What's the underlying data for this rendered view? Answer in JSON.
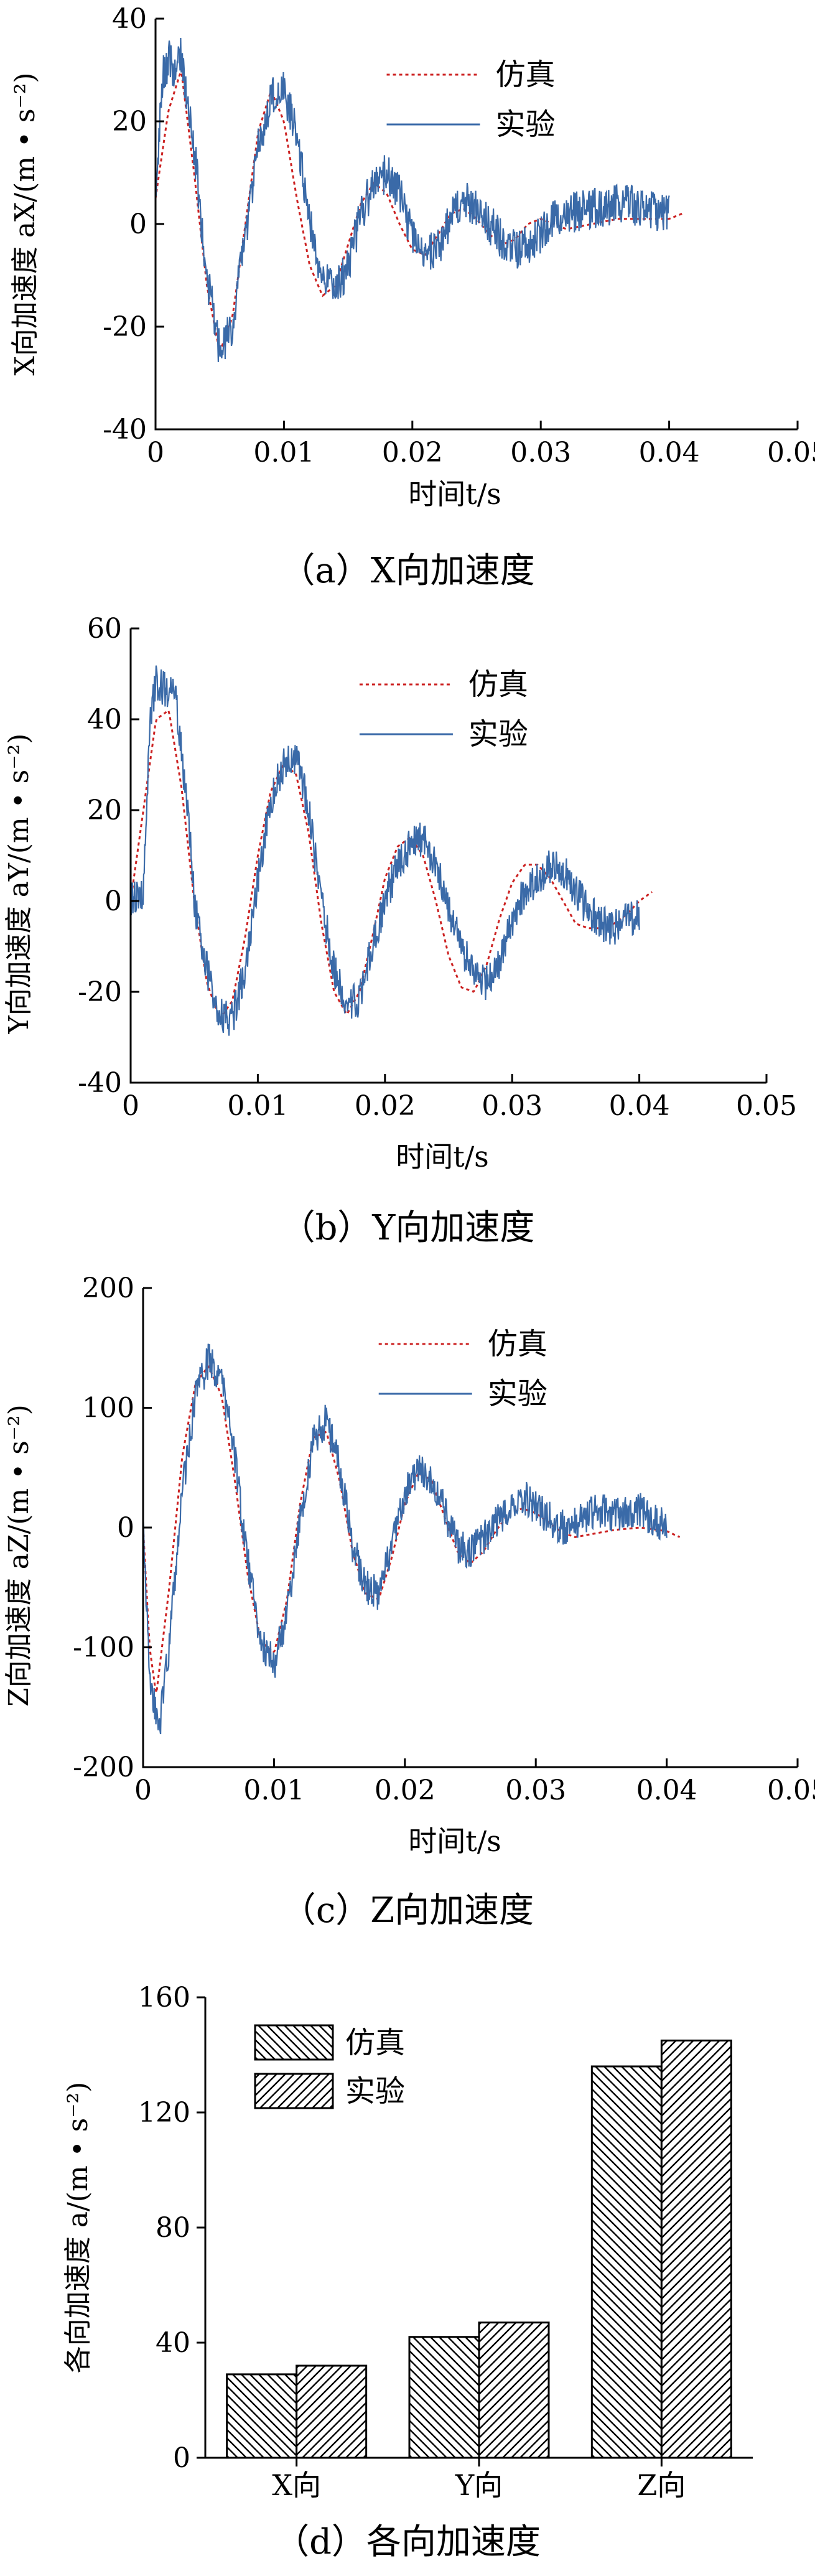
{
  "chart_data": [
    {
      "type": "line",
      "caption": "（a）X向加速度",
      "xlabel": "时间t/s",
      "ylabel": "X向加速度 aX/(m • s⁻²)",
      "xlim": [
        0,
        0.05
      ],
      "ylim": [
        -40,
        40
      ],
      "xticks": [
        "0",
        "0.01",
        "0.02",
        "0.03",
        "0.04",
        "0.05"
      ],
      "yticks": [
        "-40",
        "-20",
        "0",
        "20",
        "40"
      ],
      "legend": {
        "position": "top-right",
        "entries": [
          "仿真",
          "实验"
        ]
      },
      "series": [
        {
          "name": "仿真",
          "style": "dotted",
          "color": "#cc2222",
          "x": [
            0,
            0.001,
            0.002,
            0.003,
            0.004,
            0.005,
            0.006,
            0.007,
            0.008,
            0.009,
            0.01,
            0.011,
            0.012,
            0.013,
            0.014,
            0.015,
            0.016,
            0.017,
            0.018,
            0.019,
            0.02,
            0.021,
            0.022,
            0.023,
            0.024,
            0.025,
            0.026,
            0.027,
            0.028,
            0.029,
            0.03,
            0.031,
            0.032,
            0.034,
            0.036,
            0.038,
            0.04,
            0.041
          ],
          "y": [
            5,
            22,
            30,
            10,
            -12,
            -25,
            -18,
            0,
            18,
            26,
            20,
            5,
            -8,
            -14,
            -12,
            -4,
            4,
            8,
            6,
            0,
            -5,
            -6,
            -2,
            2,
            3,
            1,
            -2,
            -4,
            -3,
            0,
            1,
            0,
            -1,
            0,
            1,
            1,
            1,
            2
          ]
        },
        {
          "name": "实验",
          "style": "solid",
          "color": "#3a6aa8",
          "noise": 4,
          "x": [
            0,
            0.0005,
            0.001,
            0.0015,
            0.002,
            0.003,
            0.004,
            0.005,
            0.006,
            0.007,
            0.008,
            0.009,
            0.01,
            0.011,
            0.012,
            0.013,
            0.014,
            0.015,
            0.016,
            0.017,
            0.018,
            0.019,
            0.02,
            0.021,
            0.022,
            0.023,
            0.024,
            0.025,
            0.026,
            0.027,
            0.028,
            0.029,
            0.03,
            0.031,
            0.032,
            0.034,
            0.036,
            0.038,
            0.04
          ],
          "y": [
            5,
            28,
            32,
            30,
            33,
            15,
            -10,
            -25,
            -20,
            -2,
            15,
            25,
            26,
            18,
            0,
            -10,
            -13,
            -8,
            2,
            8,
            10,
            6,
            -2,
            -6,
            -5,
            1,
            5,
            3,
            0,
            -3,
            -5,
            -4,
            -2,
            1,
            2,
            3,
            4,
            3,
            2
          ]
        }
      ]
    },
    {
      "type": "line",
      "caption": "（b）Y向加速度",
      "xlabel": "时间t/s",
      "ylabel": "Y向加速度 aY/(m • s⁻²)",
      "xlim": [
        0,
        0.05
      ],
      "ylim": [
        -40,
        60
      ],
      "xticks": [
        "0",
        "0.01",
        "0.02",
        "0.03",
        "0.04",
        "0.05"
      ],
      "yticks": [
        "-40",
        "-20",
        "0",
        "20",
        "40",
        "60"
      ],
      "legend": {
        "position": "top-right",
        "entries": [
          "仿真",
          "实验"
        ]
      },
      "series": [
        {
          "name": "仿真",
          "style": "dotted",
          "color": "#cc2222",
          "x": [
            0,
            0.001,
            0.002,
            0.003,
            0.004,
            0.005,
            0.006,
            0.007,
            0.008,
            0.009,
            0.01,
            0.011,
            0.012,
            0.013,
            0.014,
            0.015,
            0.016,
            0.017,
            0.018,
            0.019,
            0.02,
            0.021,
            0.022,
            0.023,
            0.024,
            0.025,
            0.026,
            0.027,
            0.028,
            0.029,
            0.03,
            0.031,
            0.032,
            0.033,
            0.034,
            0.035,
            0.036,
            0.037,
            0.038,
            0.039,
            0.04,
            0.041
          ],
          "y": [
            0,
            20,
            40,
            42,
            25,
            0,
            -18,
            -26,
            -22,
            -8,
            10,
            24,
            30,
            28,
            15,
            -5,
            -20,
            -25,
            -20,
            -8,
            5,
            12,
            14,
            10,
            0,
            -12,
            -19,
            -20,
            -14,
            -4,
            4,
            8,
            8,
            5,
            0,
            -5,
            -6,
            -6,
            -5,
            -3,
            0,
            2
          ]
        },
        {
          "name": "实验",
          "style": "solid",
          "color": "#3a6aa8",
          "noise": 4,
          "x": [
            0,
            0.001,
            0.0015,
            0.002,
            0.0035,
            0.0045,
            0.005,
            0.006,
            0.007,
            0.008,
            0.009,
            0.01,
            0.011,
            0.012,
            0.013,
            0.014,
            0.015,
            0.016,
            0.017,
            0.018,
            0.019,
            0.02,
            0.021,
            0.022,
            0.023,
            0.024,
            0.025,
            0.026,
            0.027,
            0.028,
            0.029,
            0.03,
            0.031,
            0.032,
            0.033,
            0.034,
            0.035,
            0.036,
            0.037,
            0.038,
            0.039,
            0.04
          ],
          "y": [
            0,
            2,
            40,
            48,
            45,
            20,
            0,
            -15,
            -25,
            -26,
            -15,
            5,
            22,
            30,
            32,
            20,
            0,
            -15,
            -22,
            -22,
            -10,
            0,
            8,
            12,
            14,
            8,
            -2,
            -10,
            -16,
            -18,
            -14,
            -4,
            2,
            5,
            8,
            7,
            2,
            -2,
            -5,
            -6,
            -4,
            -3
          ]
        }
      ]
    },
    {
      "type": "line",
      "caption": "（c）Z向加速度",
      "xlabel": "时间t/s",
      "ylabel": "Z向加速度 aZ/(m • s⁻²)",
      "xlim": [
        0,
        0.05
      ],
      "ylim": [
        -200,
        200
      ],
      "xticks": [
        "0",
        "0.01",
        "0.02",
        "0.03",
        "0.04",
        "0.05"
      ],
      "yticks": [
        "-200",
        "-100",
        "0",
        "100",
        "200"
      ],
      "legend": {
        "position": "top-right",
        "entries": [
          "仿真",
          "实验"
        ]
      },
      "series": [
        {
          "name": "仿真",
          "style": "dotted",
          "color": "#cc2222",
          "x": [
            0,
            0.0005,
            0.001,
            0.002,
            0.003,
            0.004,
            0.005,
            0.006,
            0.007,
            0.008,
            0.009,
            0.01,
            0.011,
            0.012,
            0.013,
            0.014,
            0.015,
            0.016,
            0.017,
            0.018,
            0.019,
            0.02,
            0.021,
            0.022,
            0.023,
            0.024,
            0.025,
            0.026,
            0.027,
            0.028,
            0.029,
            0.03,
            0.031,
            0.032,
            0.033,
            0.034,
            0.036,
            0.038,
            0.04,
            0.041
          ],
          "y": [
            0,
            -100,
            -140,
            -50,
            60,
            120,
            135,
            110,
            40,
            -40,
            -95,
            -105,
            -60,
            20,
            75,
            80,
            40,
            -20,
            -55,
            -60,
            -25,
            20,
            45,
            40,
            10,
            -20,
            -30,
            -20,
            -2,
            12,
            16,
            12,
            4,
            -4,
            -8,
            -6,
            -2,
            0,
            -3,
            -8
          ]
        },
        {
          "name": "实验",
          "style": "solid",
          "color": "#3a6aa8",
          "noise": 15,
          "x": [
            0,
            0.0005,
            0.0012,
            0.002,
            0.003,
            0.004,
            0.005,
            0.006,
            0.007,
            0.008,
            0.009,
            0.01,
            0.011,
            0.012,
            0.013,
            0.014,
            0.015,
            0.016,
            0.017,
            0.018,
            0.019,
            0.02,
            0.021,
            0.022,
            0.023,
            0.024,
            0.025,
            0.026,
            0.027,
            0.028,
            0.029,
            0.03,
            0.031,
            0.032,
            0.033,
            0.034,
            0.035,
            0.036,
            0.037,
            0.038,
            0.039,
            0.04
          ],
          "y": [
            0,
            -120,
            -170,
            -100,
            30,
            110,
            140,
            125,
            60,
            -30,
            -95,
            -115,
            -70,
            10,
            70,
            90,
            50,
            -15,
            -50,
            -55,
            -15,
            30,
            50,
            40,
            15,
            -15,
            -20,
            -10,
            5,
            18,
            25,
            18,
            8,
            0,
            2,
            12,
            15,
            10,
            12,
            15,
            5,
            0
          ]
        }
      ]
    },
    {
      "type": "bar",
      "caption": "（d）各向加速度",
      "ylabel": "各向加速度 a/(m • s⁻²)",
      "ylim": [
        0,
        160
      ],
      "yticks": [
        "0",
        "40",
        "80",
        "120",
        "160"
      ],
      "categories": [
        "X向",
        "Y向",
        "Z向"
      ],
      "legend": {
        "position": "top-left",
        "entries": [
          "仿真",
          "实验"
        ]
      },
      "series": [
        {
          "name": "仿真",
          "hatch": "backslash",
          "values": [
            29,
            42,
            136
          ]
        },
        {
          "name": "实验",
          "hatch": "slash",
          "values": [
            32,
            47,
            145
          ]
        }
      ]
    }
  ]
}
